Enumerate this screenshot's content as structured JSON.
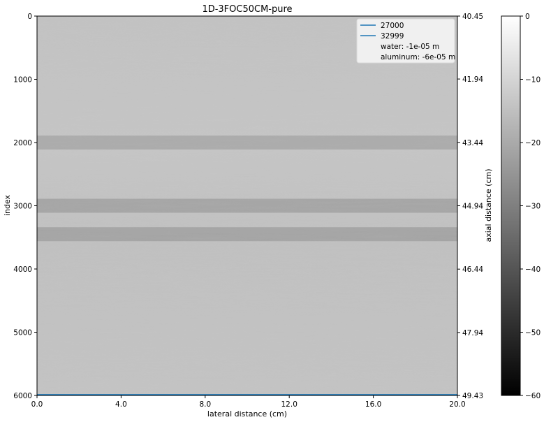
{
  "chart_data": {
    "type": "heatmap",
    "title": "1D-3FOC50CM-pure",
    "xlabel": "lateral distance (cm)",
    "ylabel": "index",
    "ylabel_right": "axial distance (cm)",
    "xlim": [
      0.0,
      20.0
    ],
    "ylim": [
      6000,
      0
    ],
    "ylim_right": [
      49.43,
      40.45
    ],
    "x_ticks": [
      0.0,
      4.0,
      8.0,
      12.0,
      16.0,
      20.0
    ],
    "x_tick_labels": [
      "0.0",
      "4.0",
      "8.0",
      "12.0",
      "16.0",
      "20.0"
    ],
    "y_ticks": [
      0,
      1000,
      2000,
      3000,
      4000,
      5000,
      6000
    ],
    "y_tick_labels": [
      "0",
      "1000",
      "2000",
      "3000",
      "4000",
      "5000",
      "6000"
    ],
    "y_right_ticks": [
      40.45,
      41.94,
      43.44,
      44.94,
      46.44,
      47.94,
      49.43
    ],
    "y_right_tick_labels": [
      "40.45",
      "41.94",
      "43.44",
      "44.94",
      "46.44",
      "47.94",
      "49.43"
    ],
    "colorbar": {
      "range": [
        -60,
        0
      ],
      "ticks": [
        0,
        -10,
        -20,
        -30,
        -40,
        -50,
        -60
      ],
      "tick_labels": [
        "0",
        "−10",
        "−20",
        "−30",
        "−40",
        "−50",
        "−60"
      ],
      "colormap": "gray"
    },
    "lines": [
      {
        "name": "27000",
        "y": 6000,
        "color": "#1f77b4"
      },
      {
        "name": "32999",
        "y": 6000,
        "color": "#1f77b4"
      }
    ],
    "legend": {
      "placement": "top-right",
      "entries": [
        {
          "label": "27000",
          "type": "line",
          "color": "#1f77b4"
        },
        {
          "label": "32999",
          "type": "line",
          "color": "#1f77b4"
        },
        {
          "label": "water: -1e-05 m",
          "type": "text"
        },
        {
          "label": "aluminum: -6e-05 m",
          "type": "text"
        }
      ]
    },
    "features": [
      {
        "name": "interface-band",
        "y": 2000,
        "value": -25
      },
      {
        "name": "interface-band",
        "y": 3000,
        "value": -27
      },
      {
        "name": "interface-band",
        "y": 3450,
        "value": -27
      }
    ],
    "background_value": -18
  }
}
